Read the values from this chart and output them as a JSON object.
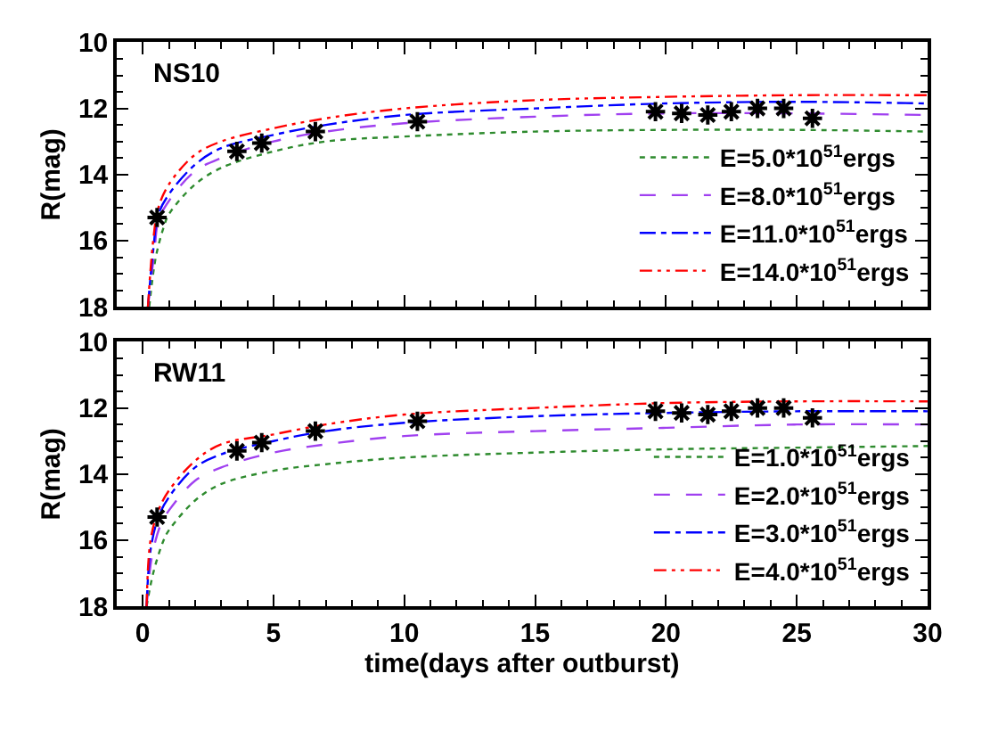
{
  "chart_data": [
    {
      "type": "line",
      "xlim": [
        -1,
        30
      ],
      "ylim": [
        18,
        10
      ],
      "xticks": [
        0,
        5,
        10,
        15,
        20,
        25,
        30
      ],
      "yticks": [
        10,
        12,
        14,
        16,
        18
      ],
      "ylabel": "R(mag)",
      "tick_labels": "y",
      "legend": "bottom right",
      "annotations": [
        "NS10"
      ],
      "series": [
        {
          "name": "E=5.0*10$^{51}$ergs",
          "color": "#2e8b2e",
          "line_style": "dotted",
          "x": [
            0.25,
            0.5,
            0.8,
            1,
            2,
            3,
            5,
            7,
            10,
            15,
            20,
            25,
            30
          ],
          "values": [
            18,
            16.5,
            15.6,
            15.2,
            14.3,
            13.8,
            13.3,
            13.0,
            12.85,
            12.7,
            12.65,
            12.65,
            12.7
          ]
        },
        {
          "name": "E=8.0*10$^{51}$ergs",
          "color": "#a040f0",
          "line_style": "dashed",
          "x": [
            0.2,
            0.45,
            0.6,
            1,
            2,
            3,
            5,
            7,
            10,
            15,
            20,
            25,
            30
          ],
          "values": [
            18,
            16.3,
            15.4,
            14.8,
            13.9,
            13.5,
            13.0,
            12.7,
            12.45,
            12.25,
            12.15,
            12.15,
            12.2
          ]
        },
        {
          "name": "E=11.0*10$^{51}$ergs",
          "color": "#0000ff",
          "line_style": "dashdot",
          "x": [
            0.2,
            0.4,
            0.6,
            1,
            2,
            3,
            5,
            7,
            10,
            15,
            20,
            25,
            30
          ],
          "values": [
            18,
            16.3,
            15.2,
            14.6,
            13.7,
            13.2,
            12.8,
            12.5,
            12.2,
            12.0,
            11.85,
            11.8,
            11.85
          ]
        },
        {
          "name": "E=14.0*10$^{51}$ergs",
          "color": "#ff0000",
          "line_style": "dashdotdot",
          "x": [
            0.2,
            0.4,
            0.6,
            1,
            2,
            3,
            5,
            7,
            10,
            15,
            20,
            25,
            30
          ],
          "values": [
            18,
            16,
            15,
            14.3,
            13.4,
            13.0,
            12.6,
            12.3,
            12.0,
            11.75,
            11.65,
            11.6,
            11.6
          ]
        },
        {
          "type": "scatter",
          "marker": "cross",
          "color": "#000000",
          "x": [
            0.55,
            3.6,
            4.55,
            6.6,
            10.5,
            19.6,
            20.6,
            21.6,
            22.5,
            23.5,
            24.5,
            25.6
          ],
          "values": [
            15.3,
            13.3,
            13.05,
            12.7,
            12.4,
            12.1,
            12.15,
            12.2,
            12.1,
            12.0,
            12.0,
            12.3
          ]
        }
      ]
    },
    {
      "type": "line",
      "xlim": [
        -1,
        30
      ],
      "ylim": [
        18,
        10
      ],
      "xticks": [
        0,
        5,
        10,
        15,
        20,
        25,
        30
      ],
      "yticks": [
        10,
        12,
        14,
        16,
        18
      ],
      "ylabel": "R(mag)",
      "xlabel": "time(days after outburst)",
      "legend": "bottom right",
      "annotations": [
        "RW11"
      ],
      "series": [
        {
          "name": "E=1.0*10$^{51}$ergs",
          "color": "#2e8b2e",
          "line_style": "dotted",
          "x": [
            0.15,
            0.4,
            0.8,
            1,
            2,
            3,
            5,
            7,
            10,
            15,
            20,
            25,
            30
          ],
          "values": [
            18,
            17,
            16,
            15.7,
            14.8,
            14.3,
            13.9,
            13.7,
            13.5,
            13.35,
            13.25,
            13.2,
            13.15
          ]
        },
        {
          "name": "E=2.0*10$^{51}$ergs",
          "color": "#a040f0",
          "line_style": "dashed",
          "x": [
            0.15,
            0.35,
            0.7,
            1,
            2,
            3,
            5,
            7,
            10,
            15,
            20,
            25,
            30
          ],
          "values": [
            18,
            16.5,
            15.5,
            15.1,
            14.2,
            13.8,
            13.35,
            13.1,
            12.85,
            12.7,
            12.6,
            12.5,
            12.5
          ]
        },
        {
          "name": "E=3.0*10$^{51}$ergs",
          "color": "#0000ff",
          "line_style": "dashdot",
          "x": [
            0.15,
            0.3,
            0.6,
            1,
            2,
            3,
            5,
            7,
            10,
            15,
            20,
            25,
            30
          ],
          "values": [
            18,
            16.3,
            15.3,
            14.7,
            13.8,
            13.4,
            13.0,
            12.7,
            12.45,
            12.25,
            12.15,
            12.1,
            12.1
          ]
        },
        {
          "name": "E=4.0*10$^{51}$ergs",
          "color": "#ff0000",
          "line_style": "dashdotdot",
          "x": [
            0.15,
            0.3,
            0.6,
            1,
            2,
            3,
            5,
            7,
            10,
            15,
            20,
            25,
            30
          ],
          "values": [
            18,
            16,
            15.1,
            14.5,
            13.6,
            13.1,
            12.8,
            12.5,
            12.2,
            12.0,
            11.85,
            11.8,
            11.8
          ]
        },
        {
          "type": "scatter",
          "marker": "cross",
          "color": "#000000",
          "x": [
            0.55,
            3.6,
            4.55,
            6.6,
            10.5,
            19.6,
            20.6,
            21.6,
            22.5,
            23.5,
            24.5,
            25.6
          ],
          "values": [
            15.3,
            13.3,
            13.05,
            12.7,
            12.4,
            12.1,
            12.15,
            12.2,
            12.1,
            12.0,
            12.0,
            12.3
          ]
        }
      ]
    }
  ]
}
